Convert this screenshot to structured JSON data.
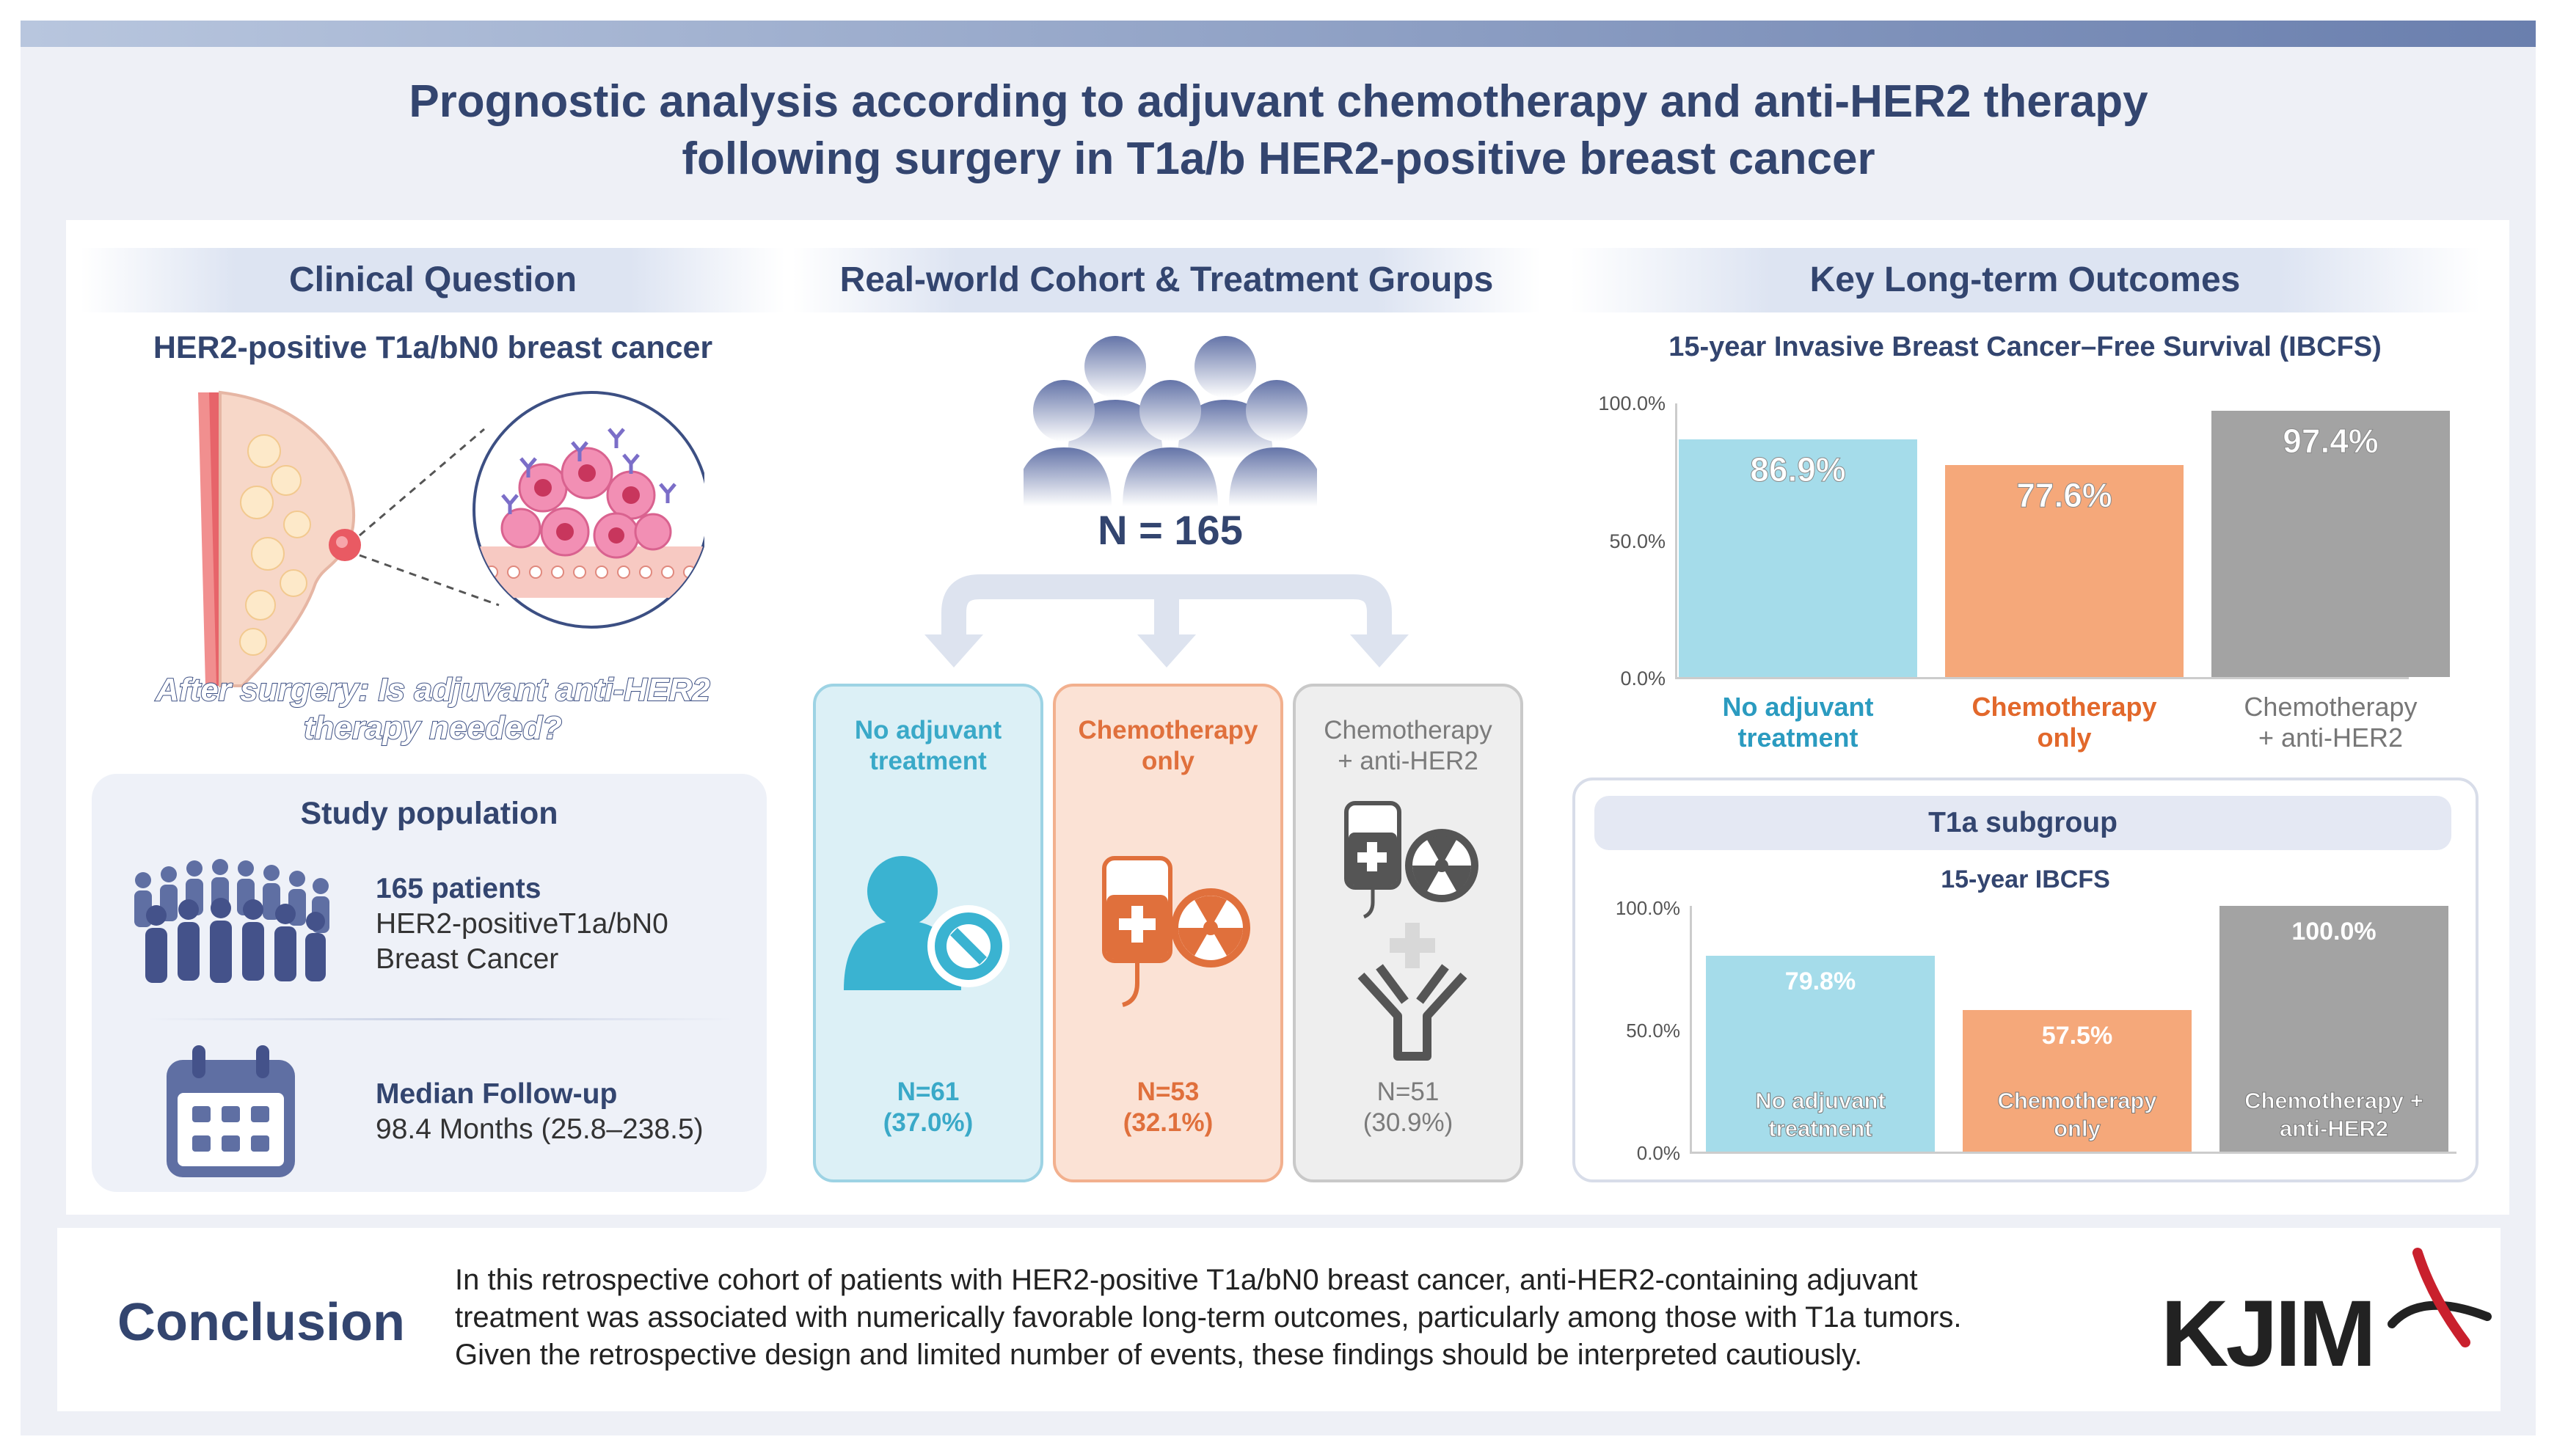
{
  "title": {
    "line1": "Prognostic analysis according to adjuvant chemotherapy and anti-HER2 therapy",
    "line2": "following surgery in T1a/b HER2-positive breast cancer"
  },
  "clinical_question": {
    "heading": "Clinical Question",
    "subtitle": "HER2-positive T1a/bN0 breast cancer",
    "question_line1": "After surgery: Is adjuvant anti-HER2",
    "question_line2": "therapy needed?"
  },
  "study_population": {
    "heading": "Study population",
    "patients_count": "165 patients",
    "patients_desc_line1": "HER2-positiveT1a/bN0",
    "patients_desc_line2": "Breast Cancer",
    "followup_label": "Median Follow-up",
    "followup_value": "98.4 Months (25.8–238.5)"
  },
  "cohort": {
    "heading": "Real-world Cohort & Treatment Groups",
    "total": "N = 165",
    "groups": [
      {
        "name_line1": "No adjuvant",
        "name_line2": "treatment",
        "n": "N=61",
        "pct": "(37.0%)",
        "color": "#3aa9c8"
      },
      {
        "name_line1": "Chemotherapy",
        "name_line2": "only",
        "n": "N=53",
        "pct": "(32.1%)",
        "color": "#e0703c"
      },
      {
        "name_line1": "Chemotherapy",
        "name_line2": "+ anti-HER2",
        "n": "N=51",
        "pct": "(30.9%)",
        "color": "#7b7b7b"
      }
    ]
  },
  "outcomes": {
    "heading": "Key Long-term Outcomes",
    "t1a_heading": "T1a subgroup"
  },
  "chart_data": [
    {
      "type": "bar",
      "title": "15-year Invasive Breast Cancer–Free Survival (IBCFS)",
      "yticks": [
        "100.0%",
        "50.0%",
        "0.0%"
      ],
      "ylim": [
        0,
        100
      ],
      "categories": [
        {
          "line1": "No adjuvant",
          "line2": "treatment"
        },
        {
          "line1": "Chemotherapy",
          "line2": "only"
        },
        {
          "line1": "Chemotherapy",
          "line2": "+ anti-HER2"
        }
      ],
      "values": [
        86.9,
        77.6,
        97.4
      ],
      "labels": [
        "86.9%",
        "77.6%",
        "97.4%"
      ],
      "colors": [
        "#a5dcea",
        "#f5a87a",
        "#a3a3a3"
      ],
      "label_colors": [
        "#2b9bc0",
        "#e2682b",
        "#777777"
      ]
    },
    {
      "type": "bar",
      "title": "15-year IBCFS",
      "yticks": [
        "100.0%",
        "50.0%",
        "0.0%"
      ],
      "ylim": [
        0,
        100
      ],
      "categories": [
        {
          "line1": "No adjuvant",
          "line2": "treatment"
        },
        {
          "line1": "Chemotherapy",
          "line2": "only"
        },
        {
          "line1": "Chemotherapy +",
          "line2": "anti-HER2"
        }
      ],
      "values": [
        79.8,
        57.5,
        100.0
      ],
      "labels": [
        "79.8%",
        "57.5%",
        "100.0%"
      ],
      "colors": [
        "#a5dcea",
        "#f5a87a",
        "#a3a3a3"
      ]
    }
  ],
  "conclusion": {
    "heading": "Conclusion",
    "line1": "In this retrospective cohort of patients with HER2-positive T1a/bN0 breast cancer, anti-HER2-containing adjuvant",
    "line2": "treatment was associated with numerically favorable long-term outcomes, particularly among those with T1a tumors.",
    "line3": "Given the retrospective design and limited number of events, these findings should be interpreted cautiously."
  },
  "logo": {
    "text": "KJIM"
  }
}
